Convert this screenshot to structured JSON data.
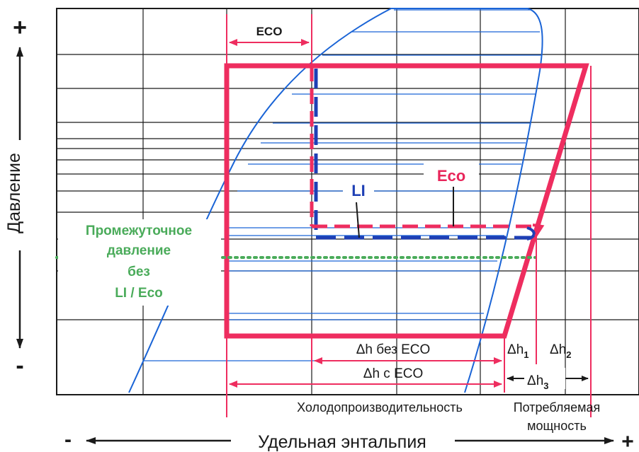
{
  "colors": {
    "grid": "#1a1a1a",
    "saturation_curve": "#1a64d6",
    "cycle": "#ee2d5f",
    "li_line": "#1e3fb5",
    "eco_line": "#ee2d5f",
    "intermediate_pressure": "#4aab5a"
  },
  "axes": {
    "y_label": "Давление",
    "y_plus": "+",
    "y_minus": "-",
    "x_label": "Удельная энтальпия",
    "x_minus": "-",
    "x_plus": "+"
  },
  "labels": {
    "eco_top": "ECO",
    "li": "LI",
    "eco_mid": "Eco",
    "intermediate_line1": "Промежуточное",
    "intermediate_line2": "давление",
    "intermediate_line3": "без",
    "intermediate_line4": "LI / Eco",
    "dh_without_eco": "Δh без ECO",
    "dh_with_eco": "Δh с ECO",
    "dh1": "Δh",
    "dh1_sub": "1",
    "dh2": "Δh",
    "dh2_sub": "2",
    "dh3": "Δh",
    "dh3_sub": "3",
    "cooling_capacity": "Холодопроизводительность",
    "power_line1": "Потребляемая",
    "power_line2": "мощность"
  }
}
